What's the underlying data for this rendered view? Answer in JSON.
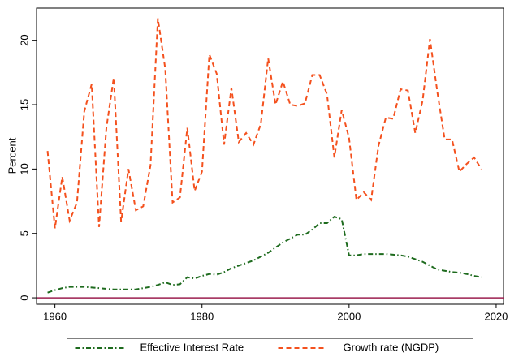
{
  "chart_data": {
    "type": "line",
    "ylabel": "Percent",
    "x": [
      1959,
      1960,
      1961,
      1962,
      1963,
      1964,
      1965,
      1966,
      1967,
      1968,
      1969,
      1970,
      1971,
      1972,
      1973,
      1974,
      1975,
      1976,
      1977,
      1978,
      1979,
      1980,
      1981,
      1982,
      1983,
      1984,
      1985,
      1986,
      1987,
      1988,
      1989,
      1990,
      1991,
      1992,
      1993,
      1994,
      1995,
      1996,
      1997,
      1998,
      1999,
      2000,
      2001,
      2002,
      2003,
      2004,
      2005,
      2006,
      2007,
      2008,
      2009,
      2010,
      2011,
      2012,
      2013,
      2014,
      2015,
      2016,
      2017,
      2018
    ],
    "series": [
      {
        "name": "Effective Interest Rate",
        "color": "#1e6b1e",
        "style": "dashdot",
        "values": [
          0.4,
          0.6,
          0.75,
          0.85,
          0.85,
          0.85,
          0.8,
          0.75,
          0.7,
          0.65,
          0.65,
          0.65,
          0.65,
          0.75,
          0.85,
          1.0,
          1.2,
          1.0,
          1.05,
          1.6,
          1.5,
          1.7,
          1.85,
          1.8,
          2.0,
          2.3,
          2.5,
          2.7,
          2.9,
          3.2,
          3.5,
          3.9,
          4.3,
          4.6,
          4.9,
          4.9,
          5.3,
          5.8,
          5.8,
          6.3,
          6.1,
          3.3,
          3.3,
          3.4,
          3.4,
          3.4,
          3.4,
          3.35,
          3.3,
          3.2,
          3.0,
          2.8,
          2.5,
          2.2,
          2.1,
          2.0,
          1.95,
          1.85,
          1.7,
          1.6
        ]
      },
      {
        "name": "Growth rate (NGDP)",
        "color": "#f4511e",
        "style": "dash",
        "values": [
          11.4,
          5.4,
          9.4,
          6.0,
          7.4,
          14.5,
          16.6,
          5.5,
          13.2,
          17.1,
          5.9,
          10.0,
          6.8,
          7.1,
          10.3,
          21.7,
          17.8,
          7.4,
          7.8,
          13.2,
          8.3,
          9.8,
          18.9,
          17.4,
          11.9,
          16.3,
          12.1,
          12.8,
          11.9,
          13.5,
          18.6,
          15.0,
          16.8,
          15.0,
          14.9,
          15.1,
          17.3,
          17.3,
          15.8,
          10.9,
          14.6,
          12.4,
          7.6,
          8.2,
          7.6,
          11.8,
          14.0,
          13.9,
          16.2,
          16.1,
          12.8,
          15.3,
          20.1,
          16.0,
          12.3,
          12.3,
          9.8,
          10.4,
          10.9,
          10.0
        ]
      }
    ],
    "reference_line": {
      "value": 0,
      "color": "#9c1f4f"
    },
    "xlim": [
      1957.5,
      2021
    ],
    "xticks": [
      1960,
      1980,
      2000,
      2020
    ],
    "ylim": [
      -0.5,
      22.5
    ],
    "yticks": [
      0,
      5,
      10,
      15,
      20
    ],
    "legend": "bottom"
  }
}
